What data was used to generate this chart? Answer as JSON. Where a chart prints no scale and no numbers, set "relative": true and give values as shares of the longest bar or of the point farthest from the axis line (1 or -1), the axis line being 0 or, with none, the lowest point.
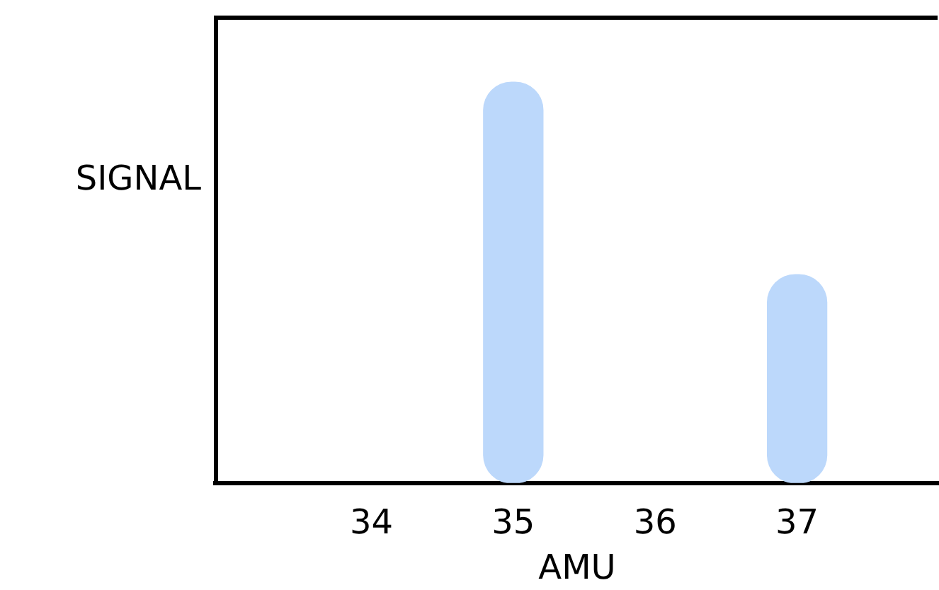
{
  "chart_data": {
    "type": "bar",
    "relative": true,
    "x": [
      35,
      37
    ],
    "values": [
      1,
      0.52
    ],
    "color": "#bcd8fb",
    "xlim": [
      32.9,
      38
    ],
    "xticks": [
      34,
      35,
      36,
      37
    ],
    "xlabel": "AMU",
    "ylabel": "SIGNAL",
    "grid": false,
    "legend": false
  }
}
